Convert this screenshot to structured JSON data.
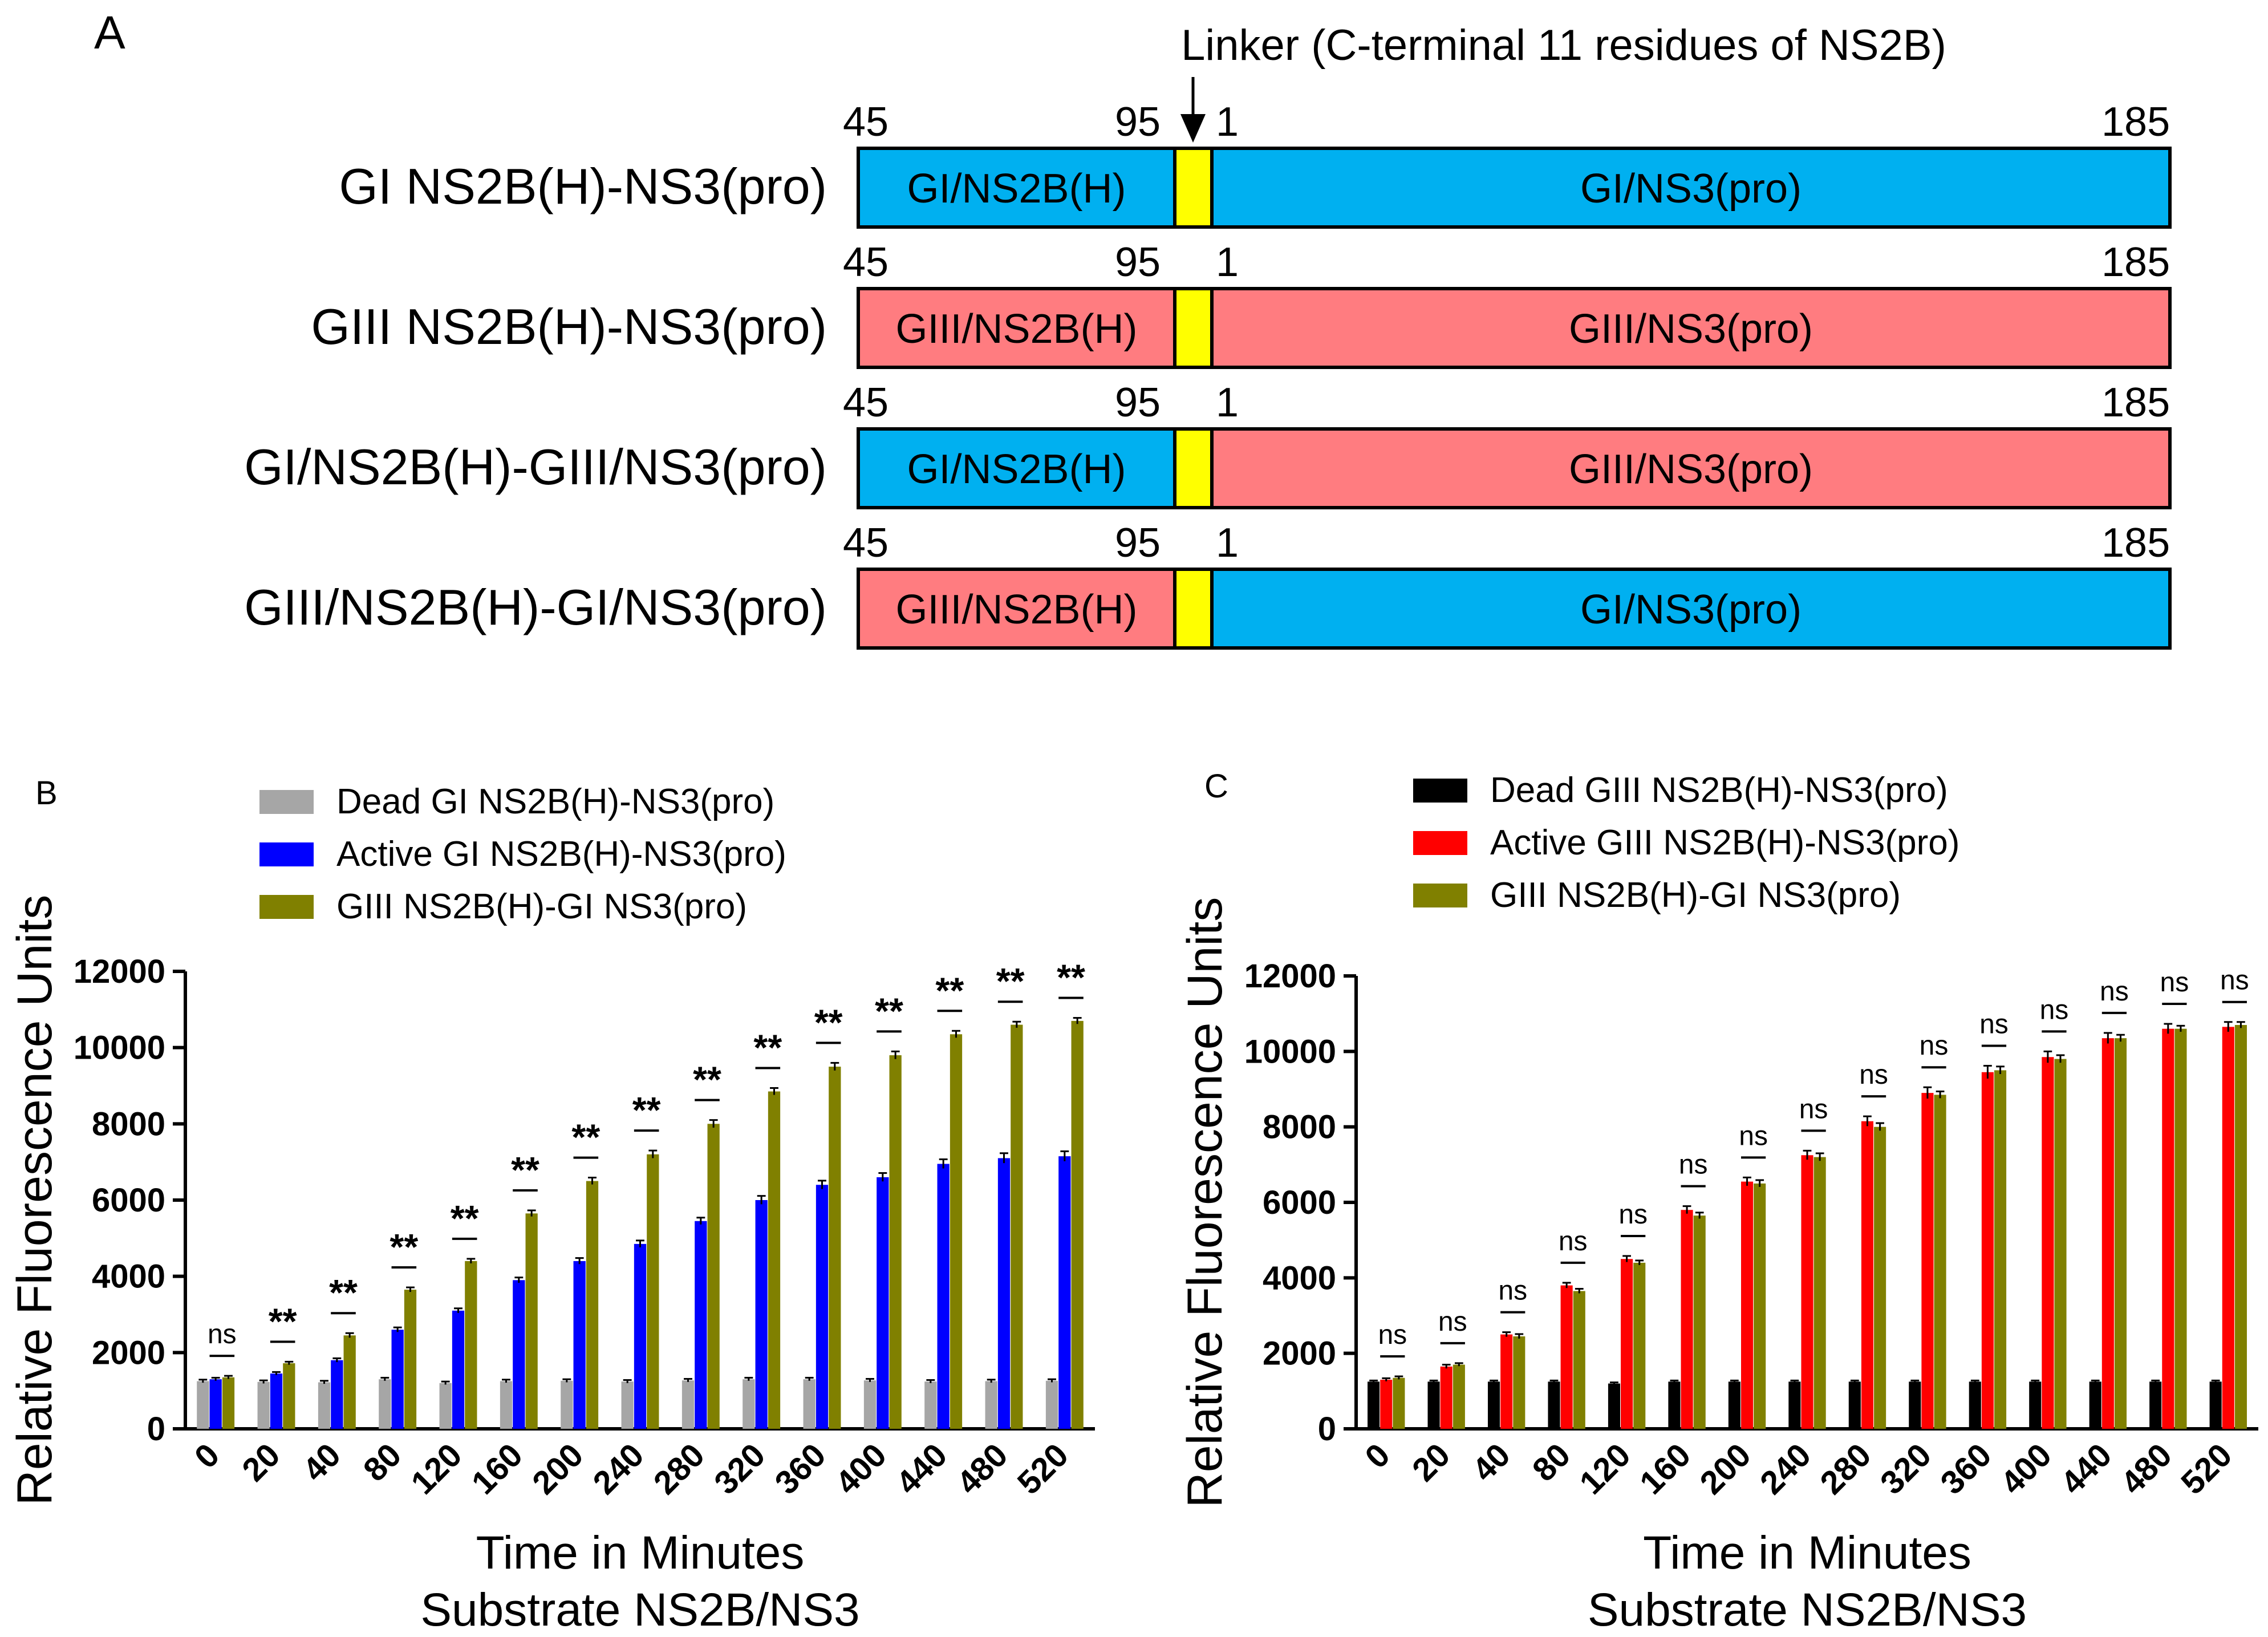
{
  "panel_a": {
    "label": "A",
    "linker_label": "Linker (C-terminal 11 residues of NS2B)",
    "colors": {
      "gi": "#00b0f0",
      "giii": "#ff7c80",
      "linker": "#ffff00"
    },
    "constructs": [
      {
        "name": "GI NS2B(H)-NS3(pro)",
        "n_start": "45",
        "n_end": "95",
        "c_start": "1",
        "c_end": "185",
        "left_label": "GI/NS2B(H)",
        "right_label": "GI/NS3(pro)",
        "left_color": "gi",
        "right_color": "gi"
      },
      {
        "name": "GIII NS2B(H)-NS3(pro)",
        "n_start": "45",
        "n_end": "95",
        "c_start": "1",
        "c_end": "185",
        "left_label": "GIII/NS2B(H)",
        "right_label": "GIII/NS3(pro)",
        "left_color": "giii",
        "right_color": "giii"
      },
      {
        "name": "GI/NS2B(H)-GIII/NS3(pro)",
        "n_start": "45",
        "n_end": "95",
        "c_start": "1",
        "c_end": "185",
        "left_label": "GI/NS2B(H)",
        "right_label": "GIII/NS3(pro)",
        "left_color": "gi",
        "right_color": "giii"
      },
      {
        "name": "GIII/NS2B(H)-GI/NS3(pro)",
        "n_start": "45",
        "n_end": "95",
        "c_start": "1",
        "c_end": "185",
        "left_label": "GIII/NS2B(H)",
        "right_label": "GI/NS3(pro)",
        "left_color": "giii",
        "right_color": "gi"
      }
    ]
  },
  "chart_data": [
    {
      "panel": "B",
      "type": "bar",
      "ylabel": "Relative Fluorescence Units",
      "xlabel": "Time in Minutes",
      "xlabel2": "Substrate NS2B/NS3",
      "ylim": [
        0,
        12000
      ],
      "yticks": [
        "0",
        "2000",
        "4000",
        "6000",
        "8000",
        "10000",
        "12000"
      ],
      "categories": [
        "0",
        "20",
        "40",
        "80",
        "120",
        "160",
        "200",
        "240",
        "280",
        "320",
        "360",
        "400",
        "440",
        "480",
        "520"
      ],
      "series": [
        {
          "name": "Dead GI NS2B(H)-NS3(pro)",
          "color": "#a6a6a6",
          "values": [
            1250,
            1230,
            1220,
            1300,
            1200,
            1250,
            1260,
            1240,
            1270,
            1300,
            1300,
            1270,
            1240,
            1250,
            1260
          ],
          "errors": [
            40,
            40,
            40,
            40,
            40,
            40,
            40,
            40,
            40,
            40,
            40,
            40,
            40,
            40,
            40
          ]
        },
        {
          "name": "Active GI NS2B(H)-NS3(pro)",
          "color": "#0000ff",
          "values": [
            1300,
            1450,
            1800,
            2600,
            3100,
            3900,
            4400,
            4850,
            5450,
            6000,
            6400,
            6600,
            6950,
            7100,
            7150
          ],
          "errors": [
            40,
            40,
            50,
            60,
            60,
            70,
            80,
            90,
            90,
            110,
            110,
            110,
            120,
            130,
            130
          ]
        },
        {
          "name": "GIII NS2B(H)-GI NS3(pro)",
          "color": "#808000",
          "values": [
            1350,
            1720,
            2450,
            3650,
            4400,
            5650,
            6500,
            7200,
            8000,
            8850,
            9500,
            9800,
            10350,
            10600,
            10700
          ],
          "errors": [
            40,
            40,
            60,
            60,
            60,
            80,
            90,
            100,
            100,
            90,
            100,
            100,
            90,
            80,
            80
          ]
        }
      ],
      "significance": [
        "ns",
        "**",
        "**",
        "**",
        "**",
        "**",
        "**",
        "**",
        "**",
        "**",
        "**",
        "**",
        "**",
        "**",
        "**"
      ]
    },
    {
      "panel": "C",
      "type": "bar",
      "ylabel": "Relative Fluorescence Units",
      "xlabel": "Time in Minutes",
      "xlabel2": "Substrate NS2B/NS3",
      "ylim": [
        0,
        12000
      ],
      "yticks": [
        "0",
        "2000",
        "4000",
        "6000",
        "8000",
        "10000",
        "12000"
      ],
      "categories": [
        "0",
        "20",
        "40",
        "80",
        "120",
        "160",
        "200",
        "240",
        "280",
        "320",
        "360",
        "400",
        "440",
        "480",
        "520"
      ],
      "series": [
        {
          "name": "Dead GIII NS2B(H)-NS3(pro)",
          "color": "#000000",
          "values": [
            1250,
            1250,
            1250,
            1250,
            1200,
            1250,
            1250,
            1250,
            1250,
            1250,
            1250,
            1250,
            1250,
            1250,
            1250
          ],
          "errors": [
            30,
            30,
            30,
            30,
            30,
            30,
            30,
            30,
            30,
            30,
            30,
            30,
            30,
            30,
            30
          ]
        },
        {
          "name": "Active GIII NS2B(H)-NS3(pro)",
          "color": "#ff0000",
          "values": [
            1300,
            1650,
            2500,
            3800,
            4500,
            5800,
            6550,
            7250,
            8150,
            8900,
            9450,
            9850,
            10350,
            10600,
            10650
          ],
          "errors": [
            40,
            50,
            60,
            70,
            80,
            100,
            110,
            120,
            130,
            150,
            170,
            150,
            140,
            130,
            130
          ]
        },
        {
          "name": "GIII NS2B(H)-GI NS3(pro)",
          "color": "#808000",
          "values": [
            1350,
            1700,
            2450,
            3650,
            4400,
            5650,
            6500,
            7200,
            8000,
            8850,
            9500,
            9800,
            10350,
            10600,
            10700
          ],
          "errors": [
            40,
            40,
            60,
            60,
            60,
            80,
            90,
            100,
            100,
            90,
            100,
            100,
            90,
            80,
            80
          ]
        }
      ],
      "significance": [
        "ns",
        "ns",
        "ns",
        "ns",
        "ns",
        "ns",
        "ns",
        "ns",
        "ns",
        "ns",
        "ns",
        "ns",
        "ns",
        "ns",
        "ns"
      ]
    }
  ],
  "panel_labels": {
    "b": "B",
    "c": "C"
  }
}
